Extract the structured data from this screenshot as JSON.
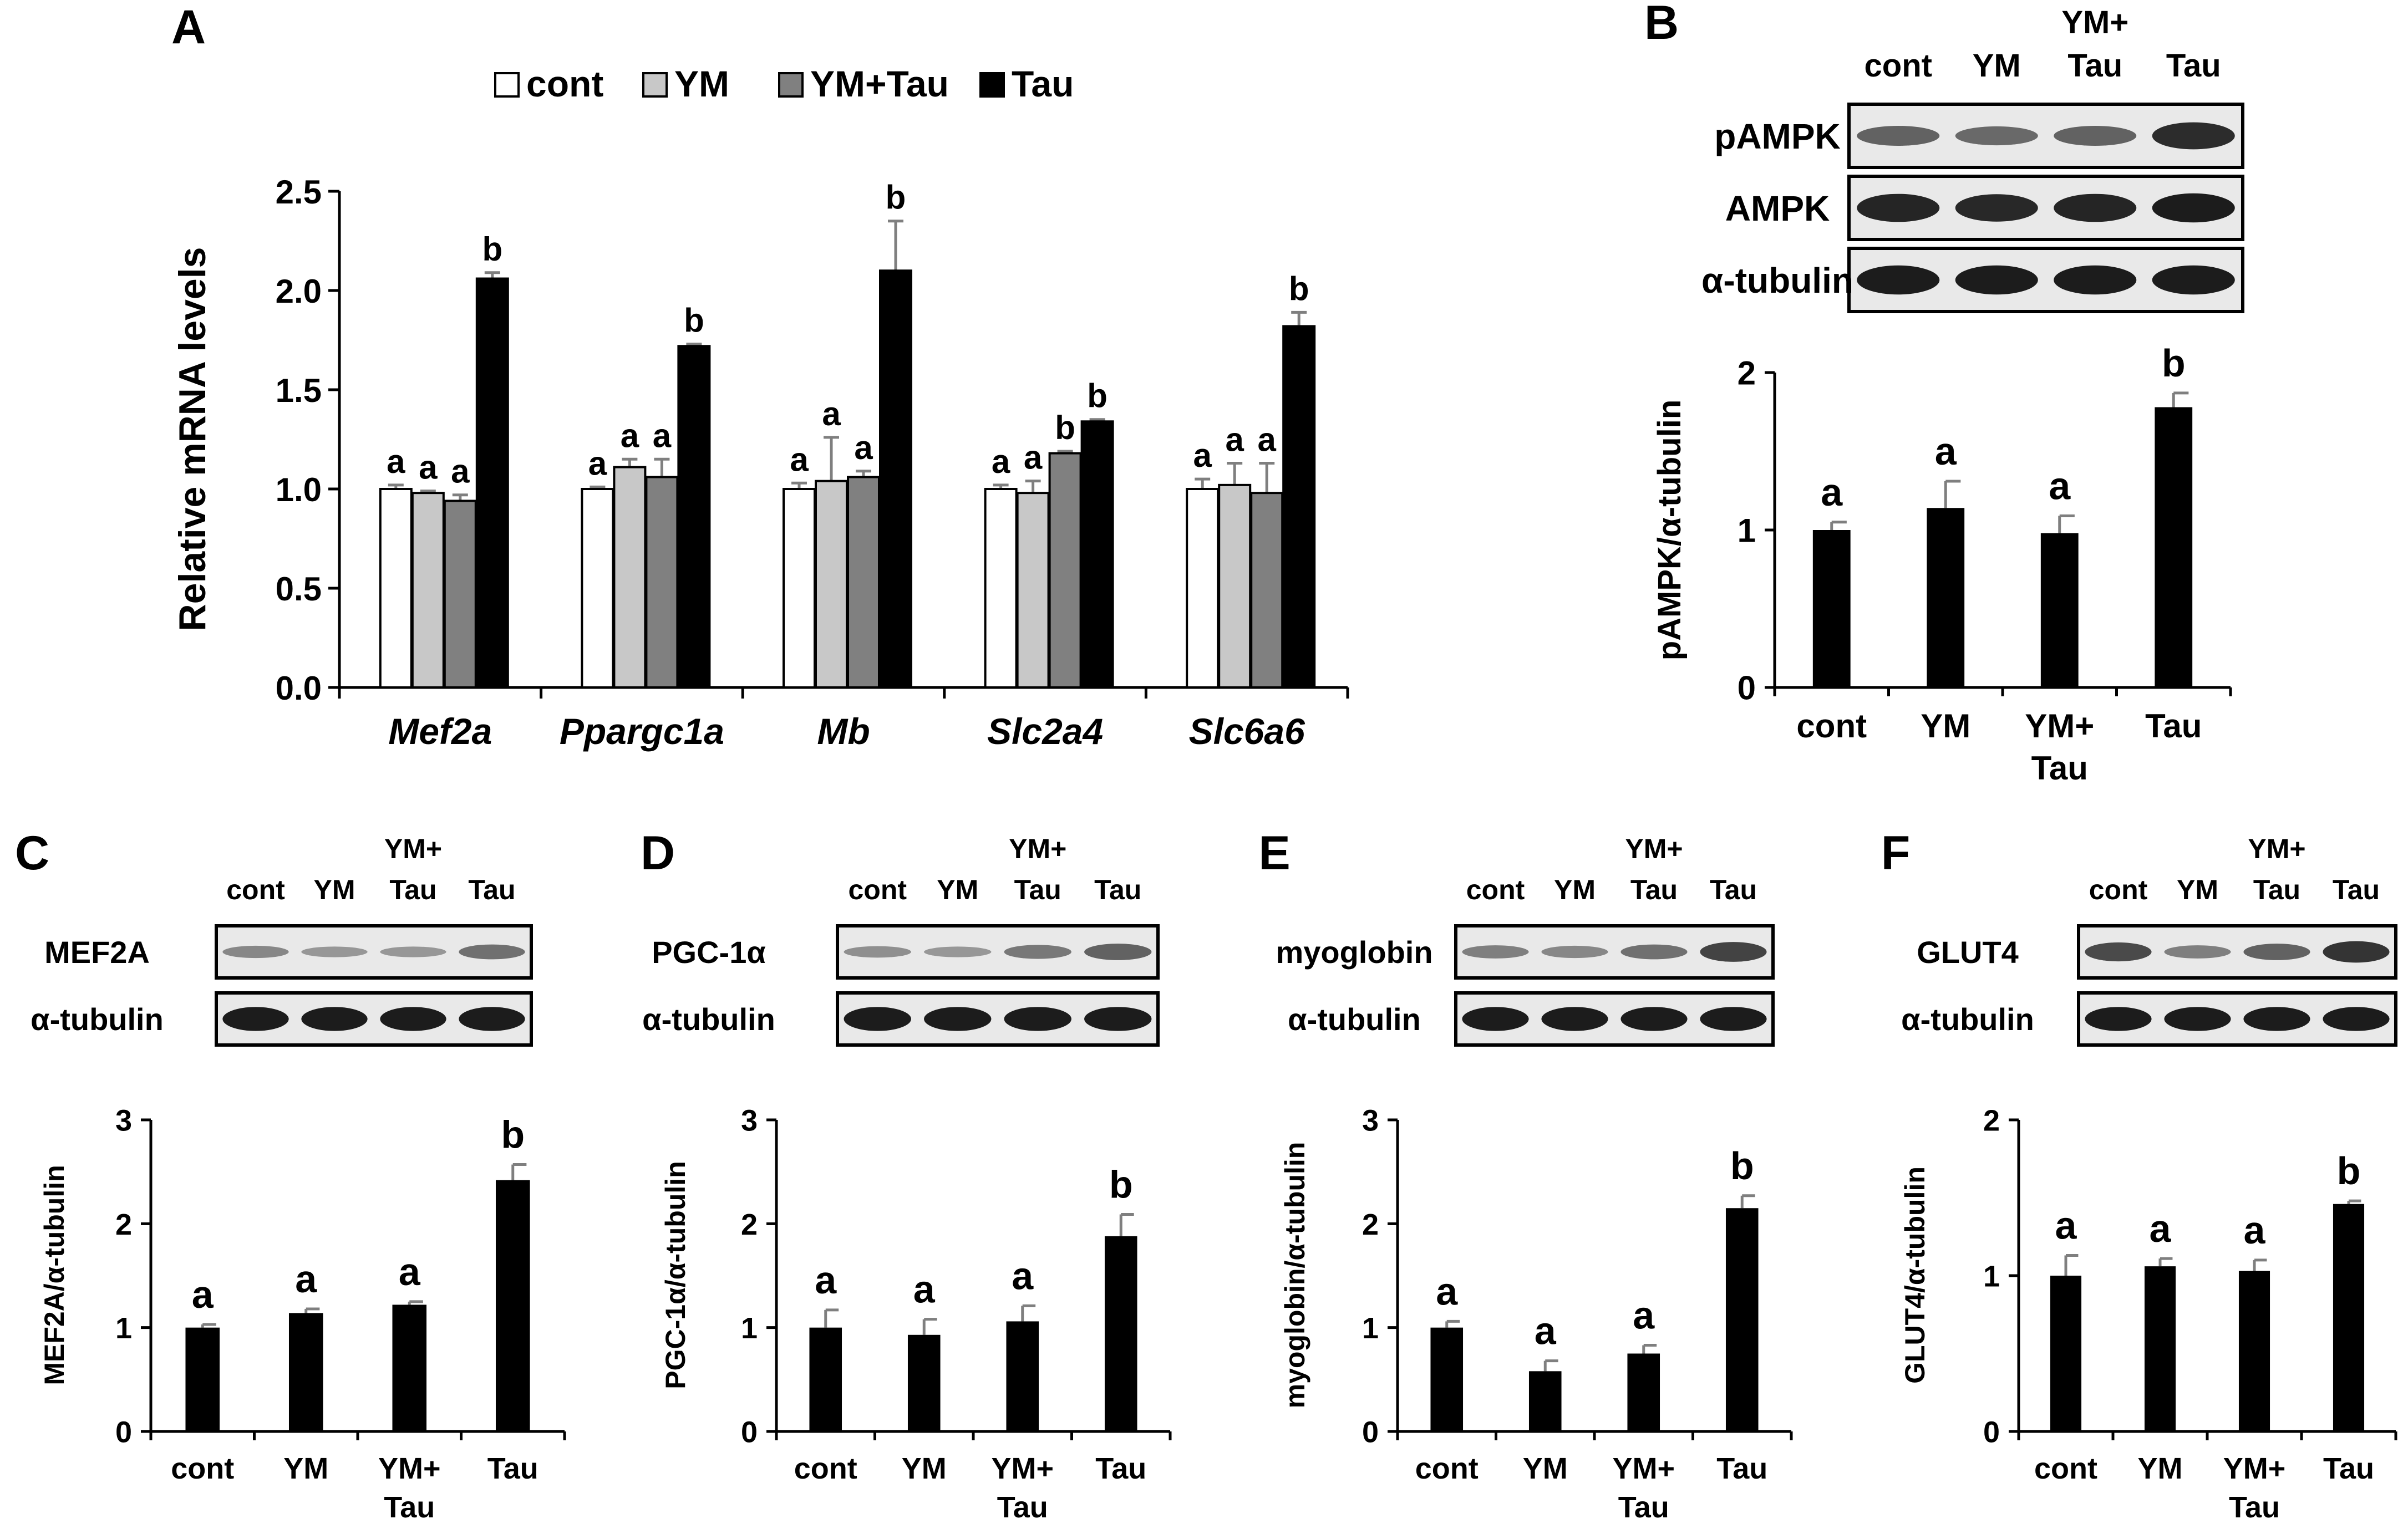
{
  "colors": {
    "cont": "#ffffff",
    "YM": "#c8c8c8",
    "YM_Tau": "#808080",
    "Tau": "#000000",
    "blot_bg": "#e9e9e9",
    "band": "#1c1c1c",
    "error": "#7f7f7f"
  },
  "chart_data": [
    {
      "panel": "A",
      "type": "bar",
      "ylabel": "Relative mRNA levels",
      "ylim": [
        0,
        2.5
      ],
      "yticks": [
        "0.0",
        "0.5",
        "1.0",
        "1.5",
        "2.0",
        "2.5"
      ],
      "categories": [
        "Mef2a",
        "Ppargc1a",
        "Mb",
        "Slc2a4",
        "Slc6a6"
      ],
      "legend": [
        "cont",
        "YM",
        "YM+Tau",
        "Tau"
      ],
      "series": [
        {
          "name": "cont",
          "values": [
            1.0,
            1.0,
            1.0,
            1.0,
            1.0
          ],
          "errors": [
            0.02,
            0.01,
            0.03,
            0.02,
            0.05
          ],
          "letters": [
            "a",
            "a",
            "a",
            "a",
            "a"
          ]
        },
        {
          "name": "YM",
          "values": [
            0.98,
            1.11,
            1.04,
            0.98,
            1.02
          ],
          "errors": [
            0.01,
            0.04,
            0.22,
            0.06,
            0.11
          ],
          "letters": [
            "a",
            "a",
            "a",
            "a",
            "a"
          ]
        },
        {
          "name": "YM+Tau",
          "values": [
            0.94,
            1.06,
            1.06,
            1.18,
            0.98
          ],
          "errors": [
            0.03,
            0.09,
            0.03,
            0.01,
            0.15
          ],
          "letters": [
            "a",
            "a",
            "a",
            "b",
            "a"
          ]
        },
        {
          "name": "Tau",
          "values": [
            2.06,
            1.72,
            2.1,
            1.34,
            1.82
          ],
          "errors": [
            0.03,
            0.01,
            0.25,
            0.01,
            0.07
          ],
          "letters": [
            "b",
            "b",
            "b",
            "b",
            "b"
          ]
        }
      ]
    },
    {
      "panel": "B",
      "type": "bar",
      "ylabel": "pAMPK/α-tubulin",
      "ylim": [
        0,
        2
      ],
      "yticks": [
        "0",
        "1",
        "2"
      ],
      "categories": [
        "cont",
        "YM",
        "YM+\nTau",
        "Tau"
      ],
      "values": [
        1.0,
        1.14,
        0.98,
        1.78
      ],
      "errors": [
        0.05,
        0.17,
        0.11,
        0.09
      ],
      "letters": [
        "a",
        "a",
        "a",
        "b"
      ],
      "blot_headers": [
        "cont",
        "YM",
        "YM+\nTau",
        "Tau"
      ],
      "blots": [
        {
          "label": "pAMPK",
          "bands": [
            0.55,
            0.5,
            0.55,
            0.9
          ]
        },
        {
          "label": "AMPK",
          "bands": [
            0.95,
            0.92,
            0.95,
            1.0
          ]
        },
        {
          "label": "α-tubulin",
          "bands": [
            1.0,
            1.0,
            1.0,
            1.0
          ]
        }
      ]
    },
    {
      "panel": "C",
      "type": "bar",
      "ylabel": "MEF2A/α-tubulin",
      "ylim": [
        0,
        3
      ],
      "yticks": [
        "0",
        "1",
        "2",
        "3"
      ],
      "categories": [
        "cont",
        "YM",
        "YM+\nTau",
        "Tau"
      ],
      "values": [
        1.0,
        1.14,
        1.22,
        2.42
      ],
      "errors": [
        0.03,
        0.04,
        0.03,
        0.15
      ],
      "letters": [
        "a",
        "a",
        "a",
        "b"
      ],
      "blot_headers": [
        "cont",
        "YM",
        "YM+\nTau",
        "Tau"
      ],
      "blots": [
        {
          "label": "MEF2A",
          "bands": [
            0.3,
            0.2,
            0.2,
            0.45
          ]
        },
        {
          "label": "α-tubulin",
          "bands": [
            1.0,
            1.0,
            1.0,
            1.0
          ]
        }
      ]
    },
    {
      "panel": "D",
      "type": "bar",
      "ylabel": "PGC-1α/α-tubulin",
      "ylim": [
        0,
        3
      ],
      "yticks": [
        "0",
        "1",
        "2",
        "3"
      ],
      "categories": [
        "cont",
        "YM",
        "YM+\nTau",
        "Tau"
      ],
      "values": [
        1.0,
        0.93,
        1.06,
        1.88
      ],
      "errors": [
        0.17,
        0.15,
        0.15,
        0.21
      ],
      "letters": [
        "a",
        "a",
        "a",
        "b"
      ],
      "blot_headers": [
        "cont",
        "YM",
        "YM+\nTau",
        "Tau"
      ],
      "blots": [
        {
          "label": "PGC-1α",
          "bands": [
            0.25,
            0.2,
            0.4,
            0.55
          ]
        },
        {
          "label": "α-tubulin",
          "bands": [
            1.0,
            1.0,
            1.0,
            1.0
          ]
        }
      ]
    },
    {
      "panel": "E",
      "type": "bar",
      "ylabel": "myoglobin/α-tubulin",
      "ylim": [
        0,
        3
      ],
      "yticks": [
        "0",
        "1",
        "2",
        "3"
      ],
      "categories": [
        "cont",
        "YM",
        "YM+\nTau",
        "Tau"
      ],
      "values": [
        1.0,
        0.58,
        0.75,
        2.15
      ],
      "errors": [
        0.06,
        0.1,
        0.08,
        0.12
      ],
      "letters": [
        "a",
        "a",
        "a",
        "b"
      ],
      "blot_headers": [
        "cont",
        "YM",
        "YM+\nTau",
        "Tau"
      ],
      "blots": [
        {
          "label": "myoglobin",
          "bands": [
            0.35,
            0.3,
            0.45,
            0.75
          ]
        },
        {
          "label": "α-tubulin",
          "bands": [
            1.0,
            1.0,
            1.0,
            1.0
          ]
        }
      ]
    },
    {
      "panel": "F",
      "type": "bar",
      "ylabel": "GLUT4/α-tubulin",
      "ylim": [
        0,
        2
      ],
      "yticks": [
        "0",
        "1",
        "2"
      ],
      "categories": [
        "cont",
        "YM",
        "YM+\nTau",
        "Tau"
      ],
      "values": [
        1.0,
        1.06,
        1.03,
        1.46
      ],
      "errors": [
        0.13,
        0.05,
        0.07,
        0.02
      ],
      "letters": [
        "a",
        "a",
        "a",
        "b"
      ],
      "blot_headers": [
        "cont",
        "YM",
        "YM+\nTau",
        "Tau"
      ],
      "blots": [
        {
          "label": "GLUT4",
          "bands": [
            0.7,
            0.35,
            0.55,
            0.85
          ]
        },
        {
          "label": "α-tubulin",
          "bands": [
            1.0,
            1.0,
            1.0,
            1.0
          ]
        }
      ]
    }
  ]
}
